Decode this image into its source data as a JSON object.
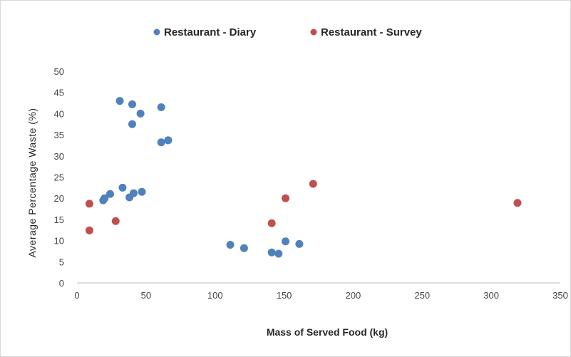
{
  "chart_data": {
    "type": "scatter",
    "title": "",
    "xlabel": "Mass of Served Food (kg)",
    "ylabel": "Average Percentage Waste (%)",
    "xlim": [
      0,
      350
    ],
    "ylim": [
      0,
      50
    ],
    "x_ticks": [
      "0",
      "50",
      "100",
      "150",
      "200",
      "250",
      "300",
      "350"
    ],
    "y_ticks": [
      "0",
      "5",
      "10",
      "15",
      "20",
      "25",
      "30",
      "35",
      "40",
      "45",
      "50"
    ],
    "grid": false,
    "legend_position": "top",
    "series": [
      {
        "name": "Restaurant - Diary",
        "color": "#4f81bd",
        "points": [
          [
            31,
            43
          ],
          [
            40,
            42.2
          ],
          [
            46,
            40
          ],
          [
            61,
            41.5
          ],
          [
            40,
            37.5
          ],
          [
            61,
            33.2
          ],
          [
            66,
            33.7
          ],
          [
            33,
            22.5
          ],
          [
            24,
            21
          ],
          [
            20,
            20
          ],
          [
            19,
            19.5
          ],
          [
            38,
            20.2
          ],
          [
            41,
            21.2
          ],
          [
            47,
            21.5
          ],
          [
            111,
            9
          ],
          [
            121,
            8.2
          ],
          [
            141,
            7.2
          ],
          [
            146,
            6.9
          ],
          [
            151,
            9.8
          ],
          [
            161,
            9.2
          ]
        ]
      },
      {
        "name": "Restaurant - Survey",
        "color": "#c0504d",
        "points": [
          [
            9,
            18.7
          ],
          [
            9,
            12.4
          ],
          [
            28,
            14.6
          ],
          [
            141,
            14.1
          ],
          [
            151,
            20
          ],
          [
            171,
            23.4
          ],
          [
            319,
            18.9
          ]
        ]
      }
    ]
  }
}
